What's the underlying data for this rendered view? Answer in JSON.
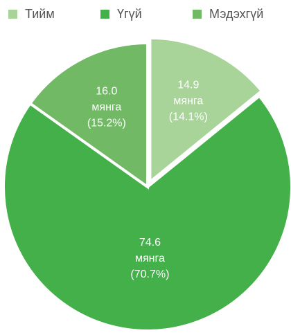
{
  "chart_data": {
    "type": "pie",
    "categories": [
      "Тийм",
      "Үгүй",
      "Мэдэхгүй"
    ],
    "values": [
      14.9,
      74.6,
      16.0
    ],
    "value_labels": [
      [
        "14.9",
        "мянга",
        "(14.1%)"
      ],
      [
        "74.6",
        "мянга",
        "(70.7%)"
      ],
      [
        "16.0",
        "мянга",
        "(15.2%)"
      ]
    ],
    "colors": [
      "#a8d49a",
      "#43b049",
      "#72b965"
    ],
    "legend": "top"
  }
}
